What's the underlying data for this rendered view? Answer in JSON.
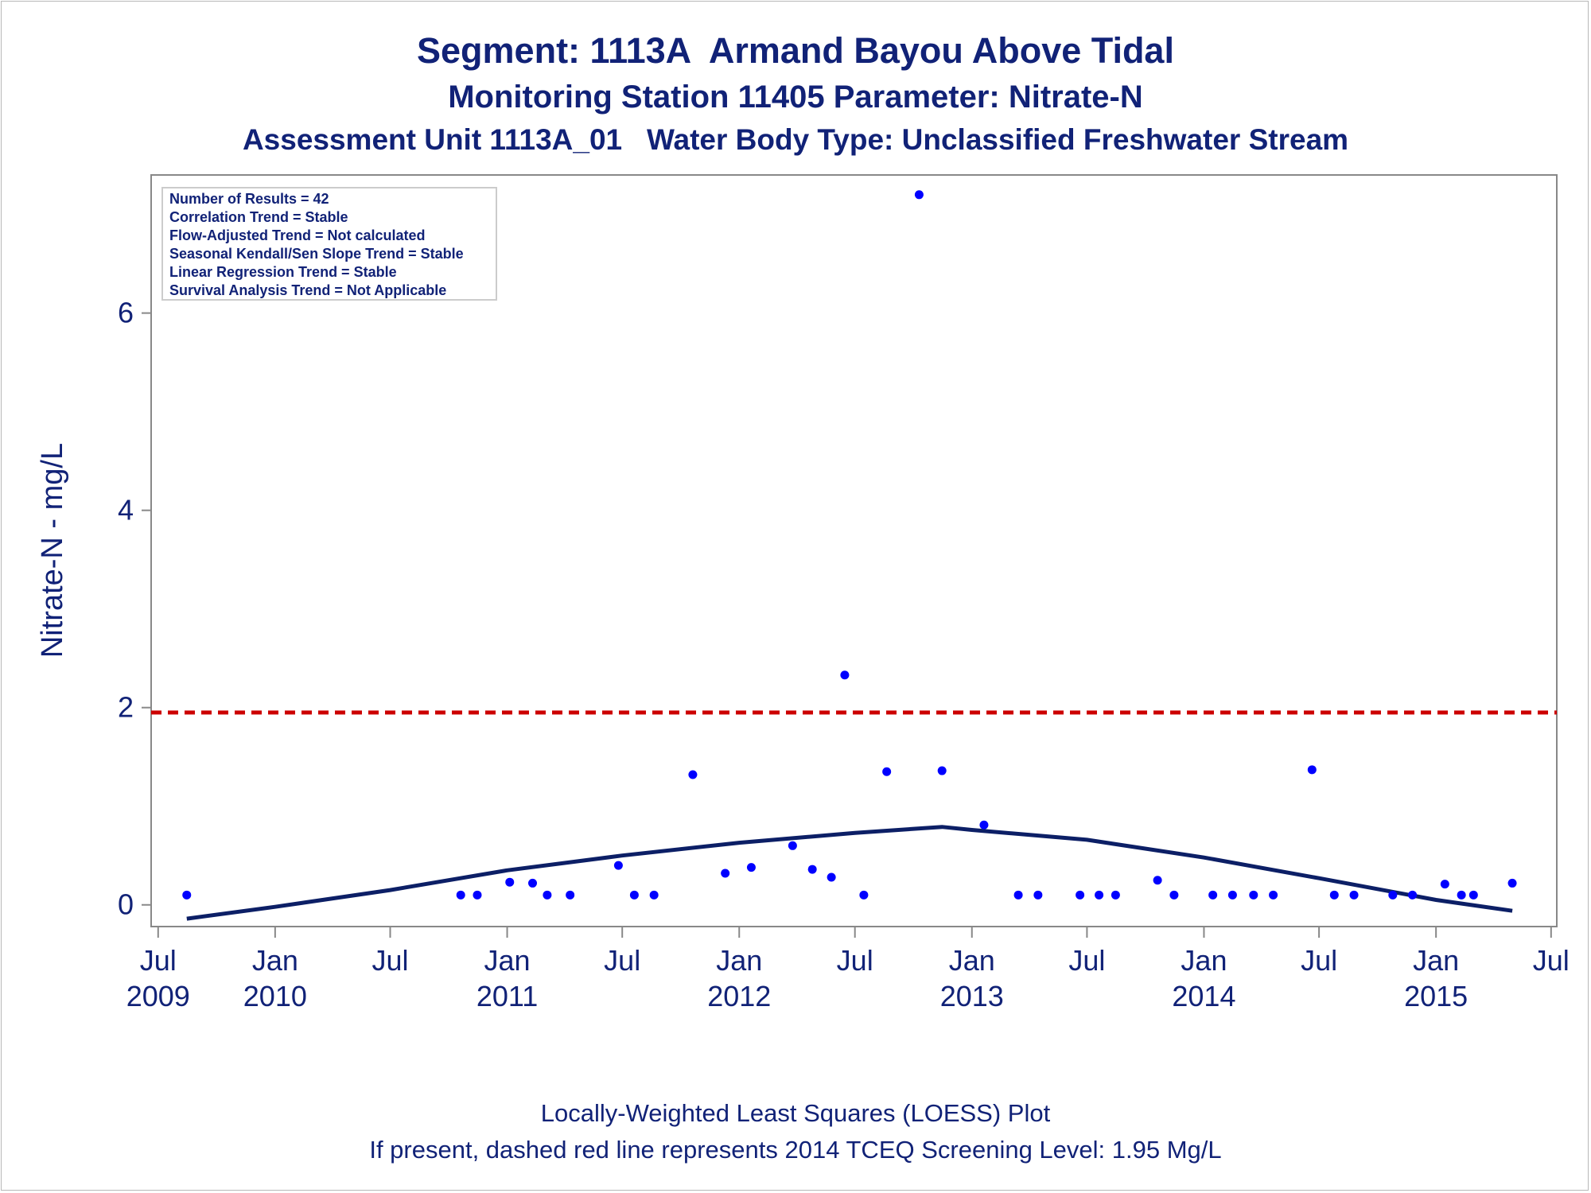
{
  "titles": {
    "line1": "Segment: 1113A  Armand Bayou Above Tidal",
    "line2": "Monitoring Station 11405 Parameter: Nitrate-N",
    "line3": "Assessment Unit 1113A_01   Water Body Type: Unclassified Freshwater Stream"
  },
  "footnotes": {
    "line1": "Locally-Weighted Least Squares (LOESS) Plot",
    "line2": "If present, dashed red line represents 2014 TCEQ Screening Level: 1.95 Mg/L"
  },
  "stats_box": [
    "Number of Results = 42",
    "Correlation Trend = Stable",
    "Flow-Adjusted Trend = Not calculated",
    "Seasonal Kendall/Sen Slope Trend = Stable",
    "Linear Regression Trend = Stable",
    "Survival Analysis Trend = Not Applicable"
  ],
  "colors": {
    "text": "#112277",
    "points": "#0000ff",
    "loess": "#0c1f66",
    "screening": "#cc0000",
    "axis": "#888888"
  },
  "chart_data": {
    "type": "scatter",
    "xlabel": "",
    "ylabel": "Nitrate-N - mg/L",
    "xlim": [
      "2009-06-20",
      "2015-07-10"
    ],
    "ylim": [
      -0.22,
      7.4
    ],
    "grid": false,
    "legend": "none",
    "x_ticks": [
      {
        "date": "2009-07-01",
        "label": [
          "Jul",
          "2009"
        ]
      },
      {
        "date": "2010-01-01",
        "label": [
          "Jan",
          "2010"
        ]
      },
      {
        "date": "2010-07-01",
        "label": [
          "Jul",
          ""
        ]
      },
      {
        "date": "2011-01-01",
        "label": [
          "Jan",
          "2011"
        ]
      },
      {
        "date": "2011-07-01",
        "label": [
          "Jul",
          ""
        ]
      },
      {
        "date": "2012-01-01",
        "label": [
          "Jan",
          "2012"
        ]
      },
      {
        "date": "2012-07-01",
        "label": [
          "Jul",
          ""
        ]
      },
      {
        "date": "2013-01-01",
        "label": [
          "Jan",
          "2013"
        ]
      },
      {
        "date": "2013-07-01",
        "label": [
          "Jul",
          ""
        ]
      },
      {
        "date": "2014-01-01",
        "label": [
          "Jan",
          "2014"
        ]
      },
      {
        "date": "2014-07-01",
        "label": [
          "Jul",
          ""
        ]
      },
      {
        "date": "2015-01-01",
        "label": [
          "Jan",
          "2015"
        ]
      },
      {
        "date": "2015-07-01",
        "label": [
          "Jul",
          ""
        ]
      }
    ],
    "y_ticks": [
      0,
      2,
      4,
      6
    ],
    "screening_level": 1.95,
    "series": [
      {
        "type": "scatter",
        "points": [
          {
            "x": "2009-08-15",
            "y": 0.1
          },
          {
            "x": "2010-10-20",
            "y": 0.1
          },
          {
            "x": "2010-11-15",
            "y": 0.1
          },
          {
            "x": "2011-01-05",
            "y": 0.23
          },
          {
            "x": "2011-02-10",
            "y": 0.22
          },
          {
            "x": "2011-03-05",
            "y": 0.1
          },
          {
            "x": "2011-04-10",
            "y": 0.1
          },
          {
            "x": "2011-06-25",
            "y": 0.4
          },
          {
            "x": "2011-07-20",
            "y": 0.1
          },
          {
            "x": "2011-08-20",
            "y": 0.1
          },
          {
            "x": "2011-10-20",
            "y": 1.32
          },
          {
            "x": "2011-12-10",
            "y": 0.32
          },
          {
            "x": "2012-01-20",
            "y": 0.38
          },
          {
            "x": "2012-03-25",
            "y": 0.6
          },
          {
            "x": "2012-04-25",
            "y": 0.36
          },
          {
            "x": "2012-05-25",
            "y": 0.28
          },
          {
            "x": "2012-06-15",
            "y": 2.33
          },
          {
            "x": "2012-07-15",
            "y": 0.1
          },
          {
            "x": "2012-08-20",
            "y": 1.35
          },
          {
            "x": "2012-10-10",
            "y": 7.2
          },
          {
            "x": "2012-11-15",
            "y": 1.36
          },
          {
            "x": "2013-01-20",
            "y": 0.81
          },
          {
            "x": "2013-03-15",
            "y": 0.1
          },
          {
            "x": "2013-04-15",
            "y": 0.1
          },
          {
            "x": "2013-06-20",
            "y": 0.1
          },
          {
            "x": "2013-07-20",
            "y": 0.1
          },
          {
            "x": "2013-08-15",
            "y": 0.1
          },
          {
            "x": "2013-10-20",
            "y": 0.25
          },
          {
            "x": "2013-11-15",
            "y": 0.1
          },
          {
            "x": "2014-01-15",
            "y": 0.1
          },
          {
            "x": "2014-02-15",
            "y": 0.1
          },
          {
            "x": "2014-03-20",
            "y": 0.1
          },
          {
            "x": "2014-04-20",
            "y": 0.1
          },
          {
            "x": "2014-06-20",
            "y": 1.37
          },
          {
            "x": "2014-07-25",
            "y": 0.1
          },
          {
            "x": "2014-08-25",
            "y": 0.1
          },
          {
            "x": "2014-10-25",
            "y": 0.1
          },
          {
            "x": "2014-11-25",
            "y": 0.1
          },
          {
            "x": "2015-01-15",
            "y": 0.21
          },
          {
            "x": "2015-02-10",
            "y": 0.1
          },
          {
            "x": "2015-03-01",
            "y": 0.1
          },
          {
            "x": "2015-05-01",
            "y": 0.22
          }
        ]
      },
      {
        "type": "line",
        "points": [
          {
            "x": "2009-08-15",
            "y": -0.14
          },
          {
            "x": "2010-01-01",
            "y": -0.02
          },
          {
            "x": "2010-07-01",
            "y": 0.15
          },
          {
            "x": "2011-01-01",
            "y": 0.35
          },
          {
            "x": "2011-07-01",
            "y": 0.5
          },
          {
            "x": "2012-01-01",
            "y": 0.63
          },
          {
            "x": "2012-07-01",
            "y": 0.73
          },
          {
            "x": "2012-11-15",
            "y": 0.79
          },
          {
            "x": "2013-01-01",
            "y": 0.76
          },
          {
            "x": "2013-07-01",
            "y": 0.66
          },
          {
            "x": "2014-01-01",
            "y": 0.48
          },
          {
            "x": "2014-07-01",
            "y": 0.27
          },
          {
            "x": "2015-01-01",
            "y": 0.05
          },
          {
            "x": "2015-05-01",
            "y": -0.06
          }
        ]
      }
    ]
  }
}
